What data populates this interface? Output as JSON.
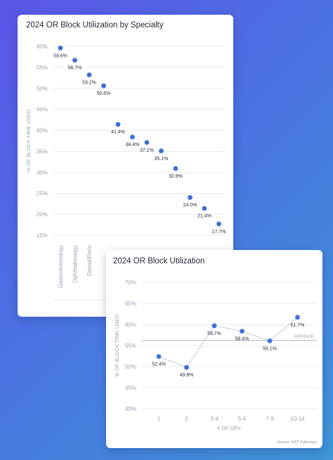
{
  "colors": {
    "point": "#3f6fd9",
    "grid": "#e6e9ef",
    "text": "#9aa1b1",
    "dark": "#2c3140",
    "line": "#c5cad6",
    "avg": "#b0b6c4"
  },
  "chart_data": [
    {
      "type": "scatter",
      "title": "2024 OR Block Utilization by Specialty",
      "ylabel": "% OF BLOCK TIME USED",
      "ylim": [
        15,
        60
      ],
      "yticks": [
        "60%",
        "55%",
        "50%",
        "45%",
        "40%",
        "35%",
        "30%",
        "25%",
        "20%",
        "15%"
      ],
      "categories": [
        "Gastroenterology",
        "Ophthalmology",
        "Dental/Perio",
        "",
        "",
        "",
        "",
        "",
        "",
        "",
        "",
        ""
      ],
      "values": [
        59.6,
        56.7,
        53.2,
        50.6,
        41.4,
        38.4,
        37.1,
        35.1,
        30.9,
        24.0,
        21.4,
        17.7
      ],
      "labels": [
        "59.6%",
        "56.7%",
        "53.2%",
        "50.6%",
        "41.4%",
        "38.4%",
        "37.1%",
        "35.1%",
        "30.9%",
        "24.0%",
        "21.4%",
        "17.7%"
      ],
      "grid": true
    },
    {
      "type": "line",
      "title": "2024 OR Block Utilization",
      "ylabel": "% OF BLOCK TIME USED",
      "xlabel": "# OF ORs",
      "ylim": [
        40,
        70
      ],
      "yticks": [
        "70%",
        "65%",
        "60%",
        "55%",
        "50%",
        "45%",
        "40%"
      ],
      "categories": [
        "1",
        "2",
        "3-4",
        "5-6",
        "7-9",
        "10-14"
      ],
      "values": [
        52.4,
        49.8,
        59.7,
        58.4,
        56.1,
        61.7
      ],
      "labels": [
        "52.4%",
        "49.8%",
        "59.7%",
        "58.4%",
        "56.1%",
        "61.7%"
      ],
      "average_label": "AVERAGE",
      "average": 56.2,
      "grid": true,
      "source": "Source: HST Pathways"
    }
  ]
}
